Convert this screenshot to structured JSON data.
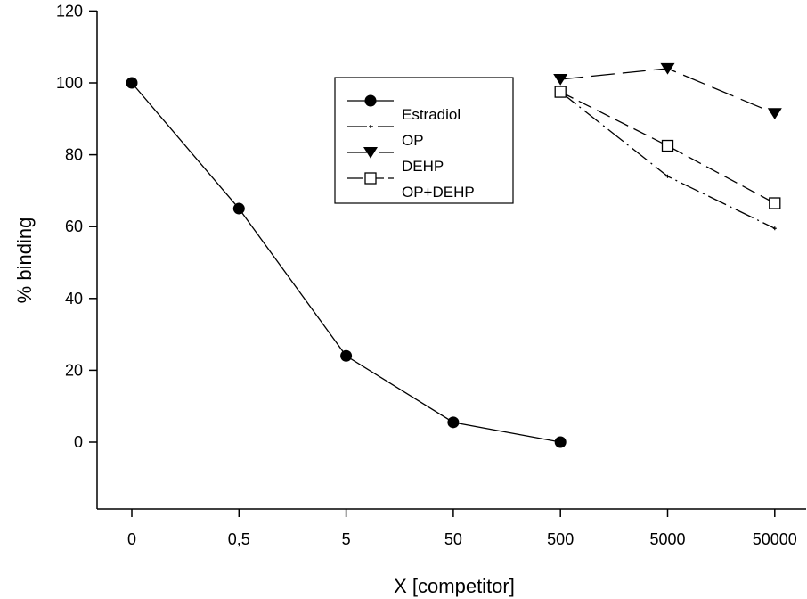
{
  "chart_data": {
    "type": "line",
    "xlabel": "X [competitor]",
    "ylabel": "% binding",
    "categories": [
      "0",
      "0,5",
      "5",
      "50",
      "500",
      "5000",
      "50000"
    ],
    "yticks": [
      "0",
      "20",
      "40",
      "60",
      "80",
      "100",
      "120"
    ],
    "ylim": [
      -18,
      120
    ],
    "grid": false,
    "legend_position": "top-center",
    "series": [
      {
        "name": "Estradiol",
        "marker": "filled-circle",
        "line": "solid",
        "values": [
          100,
          65,
          24,
          5.5,
          0,
          null,
          null
        ]
      },
      {
        "name": "OP",
        "marker": "small-plus",
        "line": "dash-dot",
        "values": [
          null,
          null,
          null,
          null,
          97.5,
          74,
          59.5
        ]
      },
      {
        "name": "DEHP",
        "marker": "filled-triangle-down",
        "line": "long-dash",
        "values": [
          null,
          null,
          null,
          null,
          101,
          104,
          91.5
        ]
      },
      {
        "name": "OP+DEHP",
        "marker": "open-square",
        "line": "dashed",
        "values": [
          null,
          null,
          null,
          null,
          97.5,
          82.5,
          66.5
        ]
      }
    ]
  }
}
